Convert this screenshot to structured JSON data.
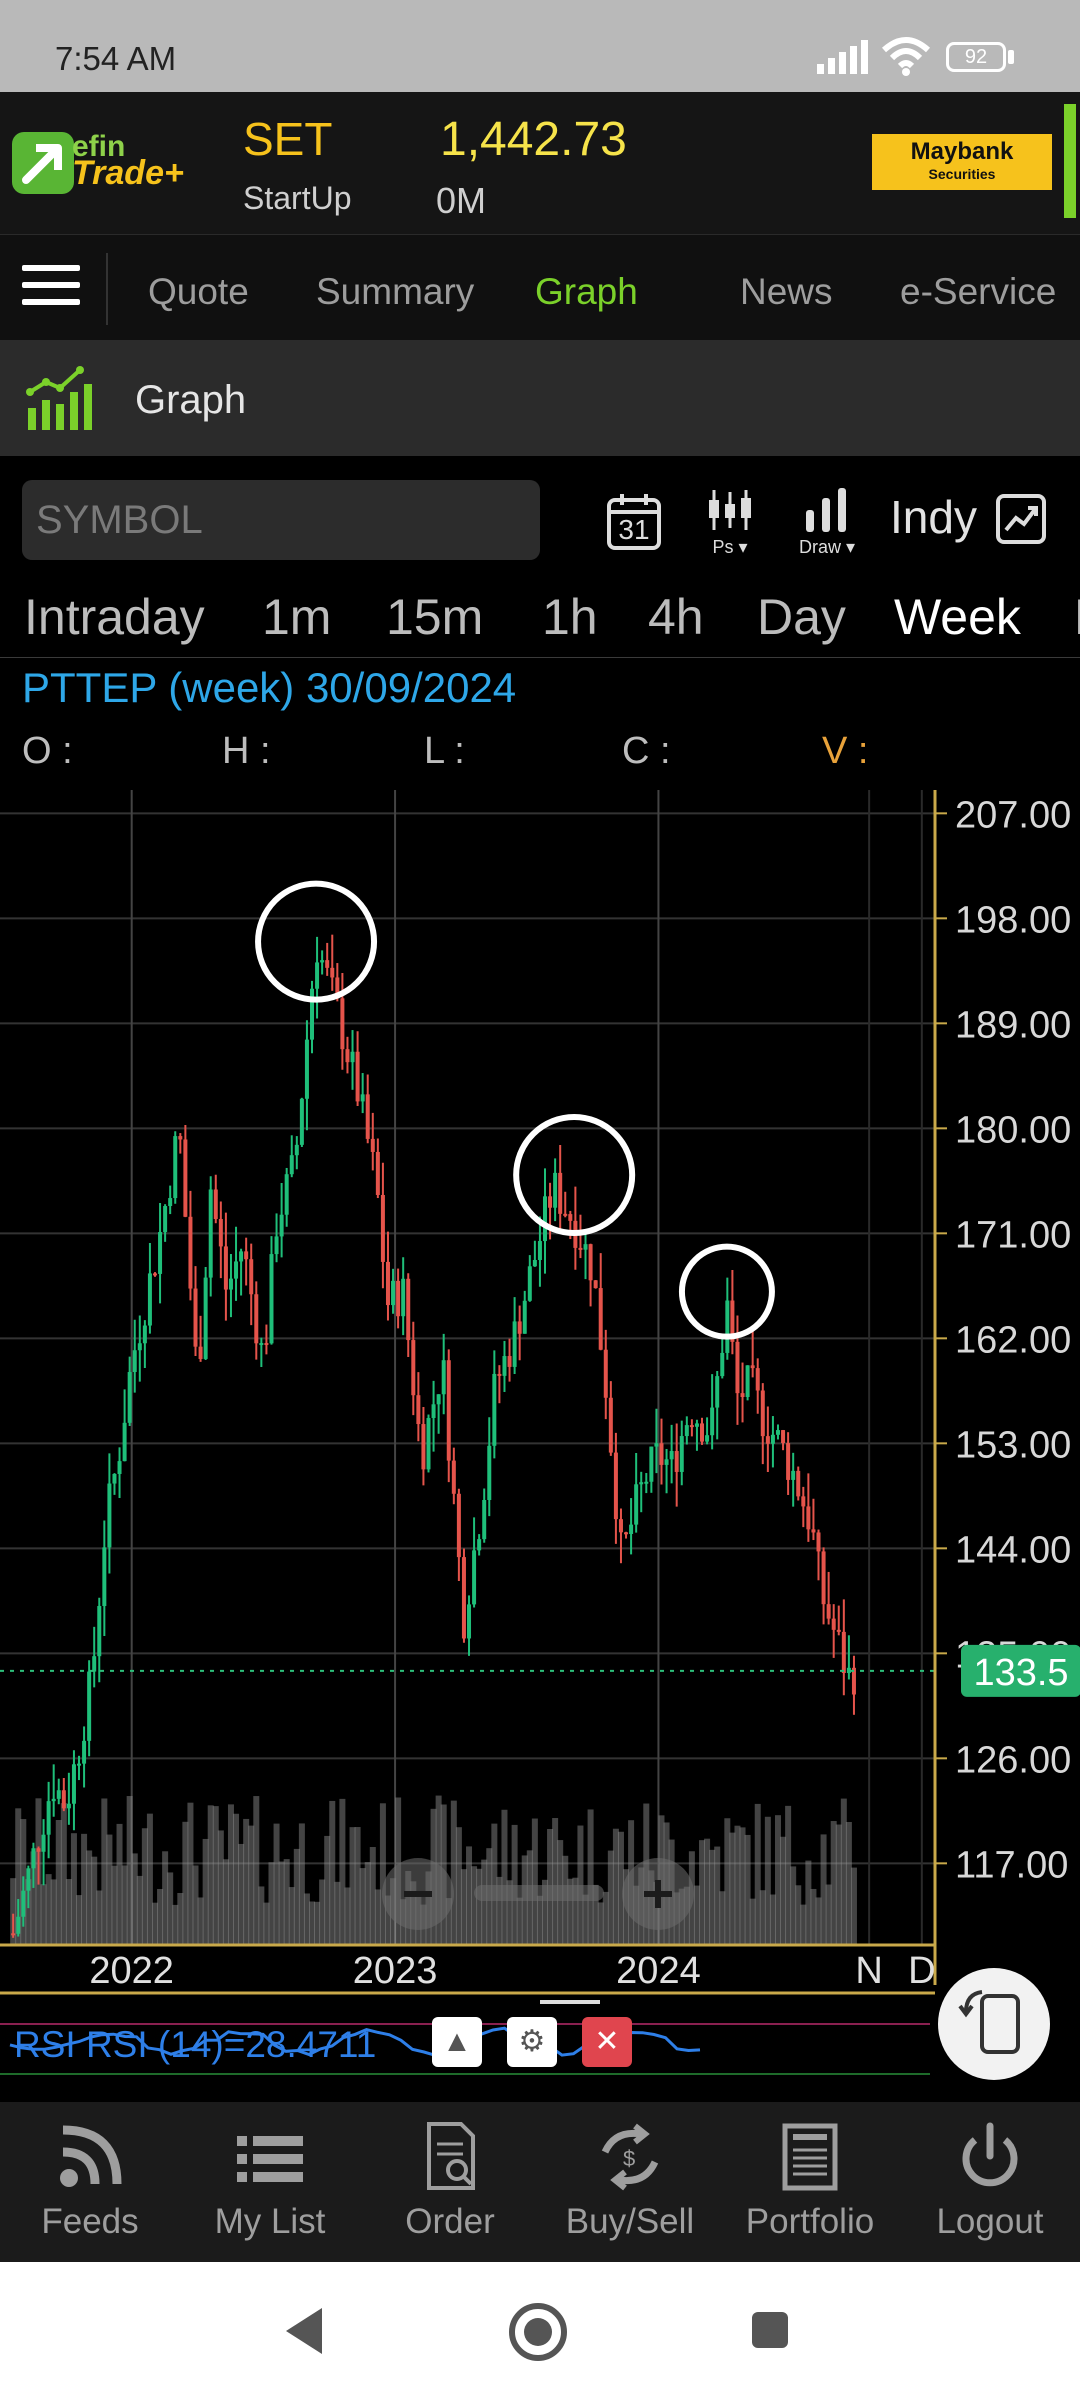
{
  "status_bar": {
    "time": "7:54 AM",
    "battery": "92"
  },
  "header": {
    "logo_top": "efin",
    "logo_bottom": "Trade+",
    "market": "SET",
    "index_value": "1,442.73",
    "sub_label": "StartUp",
    "volume": "0M",
    "broker_name": "Maybank",
    "broker_sub": "Securities"
  },
  "nav": {
    "tabs": [
      "Quote",
      "Summary",
      "Graph",
      "News",
      "e-Service"
    ],
    "active": "Graph"
  },
  "page": {
    "title": "Graph"
  },
  "toolbar": {
    "symbol_placeholder": "SYMBOL",
    "calendar_day": "31",
    "ps_label": "Ps ▾",
    "draw_label": "Draw ▾",
    "indy_label": "Indy"
  },
  "periods": [
    "Intraday",
    "1m",
    "15m",
    "1h",
    "4h",
    "Day",
    "Week",
    "M"
  ],
  "active_period": "Week",
  "chart_info": {
    "title": "PTTEP (week) 30/09/2024",
    "o_label": "O :",
    "h_label": "H :",
    "l_label": "L :",
    "c_label": "C :",
    "v_label": "V :"
  },
  "chart_data": {
    "type": "line",
    "x_labels": [
      "2022",
      "2023",
      "2024",
      "N",
      "D"
    ],
    "y_ticks": [
      "207.00",
      "198.00",
      "189.00",
      "180.00",
      "171.00",
      "162.00",
      "153.00",
      "144.00",
      "135.00",
      "126.00",
      "117.00"
    ],
    "ylim": [
      110,
      209
    ],
    "last_price": "133.5",
    "x_range": [
      2021.5,
      2025.05
    ],
    "series": [
      {
        "x": [
          2021.55,
          2021.62,
          2021.7,
          2021.75,
          2021.8,
          2021.85,
          2021.9,
          2021.95,
          2022.0,
          2022.05,
          2022.1,
          2022.18,
          2022.25,
          2022.3,
          2022.36,
          2022.42,
          2022.5,
          2022.55,
          2022.62,
          2022.7,
          2022.78,
          2022.86,
          2022.93,
          2022.97,
          2023.03,
          2023.1,
          2023.18,
          2023.26,
          2023.33,
          2023.38,
          2023.45,
          2023.52,
          2023.6,
          2023.68,
          2023.75,
          2023.8,
          2023.86,
          2023.92,
          2023.95,
          2024.0,
          2024.05,
          2024.12,
          2024.2,
          2024.26,
          2024.3,
          2024.35,
          2024.4,
          2024.46,
          2024.52,
          2024.58,
          2024.62,
          2024.68,
          2024.72,
          2024.75
        ],
        "y": [
          111,
          117,
          124,
          122,
          127,
          133,
          146,
          152,
          160,
          165,
          170,
          180,
          158,
          175,
          166,
          170,
          160,
          172,
          177,
          196,
          190,
          183,
          175,
          165,
          166,
          152,
          160,
          138,
          148,
          158,
          162,
          168,
          175,
          172,
          168,
          158,
          143,
          148,
          150,
          152,
          151,
          156,
          154,
          165,
          157,
          158,
          155,
          153,
          150,
          146,
          140,
          136,
          133,
          133.5
        ]
      }
    ],
    "rsi": {
      "label": "RSI RSI (14)=28.4711",
      "value": 28.4711
    }
  },
  "bottom_nav": [
    "Feeds",
    "My List",
    "Order",
    "Buy/Sell",
    "Portfolio",
    "Logout"
  ]
}
